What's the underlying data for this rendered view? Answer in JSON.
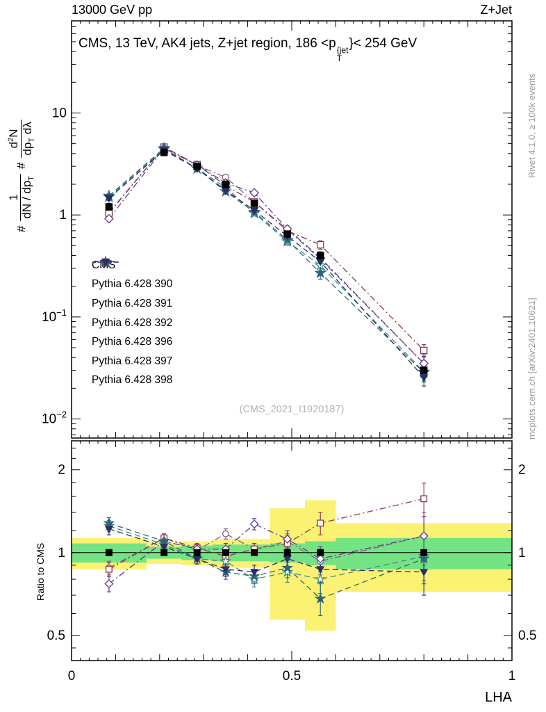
{
  "header": {
    "left": "13000 GeV pp",
    "right": "Z+Jet"
  },
  "title": {
    "part1": "CMS, 13 TeV, AK4 jets, Z+jet region, 186 <p",
    "sup": "{jet",
    "sub": "T",
    "part2": "}< 254 GeV"
  },
  "side": {
    "top": "Rivet 4.1.0, ≥ 100k events",
    "bottom": "mcplots.cern.ch [arXiv:2401.10621]"
  },
  "watermark": "(CMS_2021_I1920187)",
  "labels": {
    "ratio_ylabel": "Ratio to CMS",
    "xlabel": "LHA",
    "y_hash1": "#",
    "y_hash2": "#",
    "y_f1_num": "1",
    "y_f1_den_a": "dN / dp",
    "y_f1_den_sub": "T",
    "y_f2_num_a": "d",
    "y_f2_num_sup": "2",
    "y_f2_num_b": "N",
    "y_f2_den_a": "dp",
    "y_f2_den_sub": "T",
    "y_f2_den_b": " dλ"
  },
  "chart_data": {
    "type": "line",
    "xlabel": "LHA",
    "xlim": [
      0,
      1
    ],
    "x": [
      0.085,
      0.21,
      0.285,
      0.35,
      0.415,
      0.49,
      0.565,
      0.8
    ],
    "xticks": [
      {
        "v": 0,
        "label": "0"
      },
      {
        "v": 0.5,
        "label": "0.5"
      },
      {
        "v": 1,
        "label": "1"
      }
    ],
    "main_panel": {
      "yscale": "log",
      "ylim": [
        0.0065,
        80
      ],
      "yticks": [
        {
          "v": 10,
          "base": "10",
          "exp": ""
        },
        {
          "v": 1,
          "base": "1",
          "exp": ""
        },
        {
          "v": 0.1,
          "base": "10",
          "exp": "−1"
        },
        {
          "v": 0.01,
          "base": "10",
          "exp": "−2"
        }
      ]
    },
    "ratio_panel": {
      "yscale": "log",
      "ylim": [
        0.405,
        2.55
      ],
      "reference": 1,
      "yticks": [
        {
          "v": 2,
          "label": "2"
        },
        {
          "v": 1,
          "label": "1"
        },
        {
          "v": 0.5,
          "label": "0.5"
        }
      ]
    },
    "series": [
      {
        "label": "CMS",
        "color": "#000000",
        "marker": "square",
        "filled": true,
        "dash": null,
        "values": [
          1.2,
          4.1,
          3.0,
          2.0,
          1.3,
          0.65,
          0.4,
          0.03
        ],
        "errors": [
          0.1,
          0.18,
          0.14,
          0.1,
          0.07,
          0.04,
          0.035,
          0.004
        ],
        "ratio": null
      },
      {
        "label": "Pythia 6.428 390",
        "color": "#8a5a8a",
        "marker": "circle",
        "filled": false,
        "dash": [
          9,
          4,
          2,
          4
        ],
        "values": [
          1.06,
          4.63,
          3.06,
          2.34,
          1.34,
          0.72,
          0.37,
          0.035
        ],
        "ratio": [
          0.88,
          1.13,
          1.02,
          1.17,
          1.03,
          1.1,
          0.93,
          1.15
        ],
        "ratio_err": [
          0.05,
          0.04,
          0.04,
          0.05,
          0.05,
          0.07,
          0.1,
          0.25
        ]
      },
      {
        "label": "Pythia 6.428 391",
        "color": "#8b3a4a",
        "marker": "square",
        "filled": false,
        "dash": [
          9,
          4,
          2,
          4
        ],
        "values": [
          1.04,
          4.63,
          3.12,
          1.94,
          1.34,
          0.7,
          0.51,
          0.047
        ],
        "ratio": [
          0.87,
          1.13,
          1.04,
          0.97,
          1.03,
          1.08,
          1.28,
          1.57
        ],
        "ratio_err": [
          0.05,
          0.04,
          0.04,
          0.05,
          0.05,
          0.07,
          0.12,
          0.22
        ]
      },
      {
        "label": "Pythia 6.428 392",
        "color": "#5a3d8c",
        "marker": "diamond",
        "filled": false,
        "dash": [
          9,
          4,
          2,
          4
        ],
        "values": [
          0.92,
          4.51,
          3.09,
          2.06,
          1.65,
          0.73,
          0.38,
          0.035
        ],
        "ratio": [
          0.77,
          1.1,
          1.03,
          1.03,
          1.27,
          1.12,
          0.95,
          1.15
        ],
        "ratio_err": [
          0.05,
          0.04,
          0.04,
          0.05,
          0.06,
          0.08,
          0.1,
          0.2
        ]
      },
      {
        "label": "Pythia 6.428 396",
        "color": "#418b80",
        "marker": "star",
        "filled": false,
        "dash": [
          8,
          5
        ],
        "values": [
          1.5,
          4.39,
          2.85,
          1.86,
          1.04,
          0.55,
          0.32,
          0.029
        ],
        "ratio": [
          1.25,
          1.07,
          0.95,
          0.93,
          0.8,
          0.85,
          0.8,
          0.97
        ],
        "ratio_err": [
          0.06,
          0.04,
          0.04,
          0.05,
          0.05,
          0.07,
          0.09,
          0.18
        ]
      },
      {
        "label": "Pythia 6.428 397",
        "color": "#2f6579",
        "marker": "star",
        "filled": true,
        "dash": [
          8,
          5
        ],
        "values": [
          1.54,
          4.51,
          2.85,
          1.7,
          1.07,
          0.57,
          0.27,
          0.0285
        ],
        "ratio": [
          1.28,
          1.1,
          0.95,
          0.85,
          0.82,
          0.88,
          0.68,
          0.95
        ],
        "ratio_err": [
          0.06,
          0.04,
          0.04,
          0.05,
          0.05,
          0.07,
          0.09,
          0.18
        ]
      },
      {
        "label": "Pythia 6.428 398",
        "color": "#2b2d64",
        "marker": "triangle-down",
        "filled": true,
        "dash": [
          8,
          5
        ],
        "values": [
          1.46,
          4.31,
          2.85,
          1.74,
          1.11,
          0.62,
          0.35,
          0.0255
        ],
        "ratio": [
          1.22,
          1.05,
          0.95,
          0.87,
          0.85,
          0.95,
          0.87,
          0.85
        ],
        "ratio_err": [
          0.06,
          0.04,
          0.04,
          0.05,
          0.05,
          0.07,
          0.09,
          0.15
        ]
      }
    ],
    "bands": {
      "edges": [
        0,
        0.17,
        0.25,
        0.32,
        0.38,
        0.45,
        0.53,
        0.6,
        1.0
      ],
      "yellow": {
        "color": "#fbf273",
        "lo": [
          0.87,
          0.91,
          0.9,
          0.88,
          0.88,
          0.57,
          0.52,
          0.72
        ],
        "hi": [
          1.13,
          1.09,
          1.1,
          1.12,
          1.12,
          1.45,
          1.55,
          1.28
        ]
      },
      "green": {
        "color": "#74e383",
        "lo": [
          0.92,
          0.95,
          0.94,
          0.93,
          0.93,
          0.92,
          0.9,
          0.87
        ],
        "hi": [
          1.08,
          1.05,
          1.06,
          1.07,
          1.07,
          1.08,
          1.1,
          1.13
        ]
      }
    }
  }
}
